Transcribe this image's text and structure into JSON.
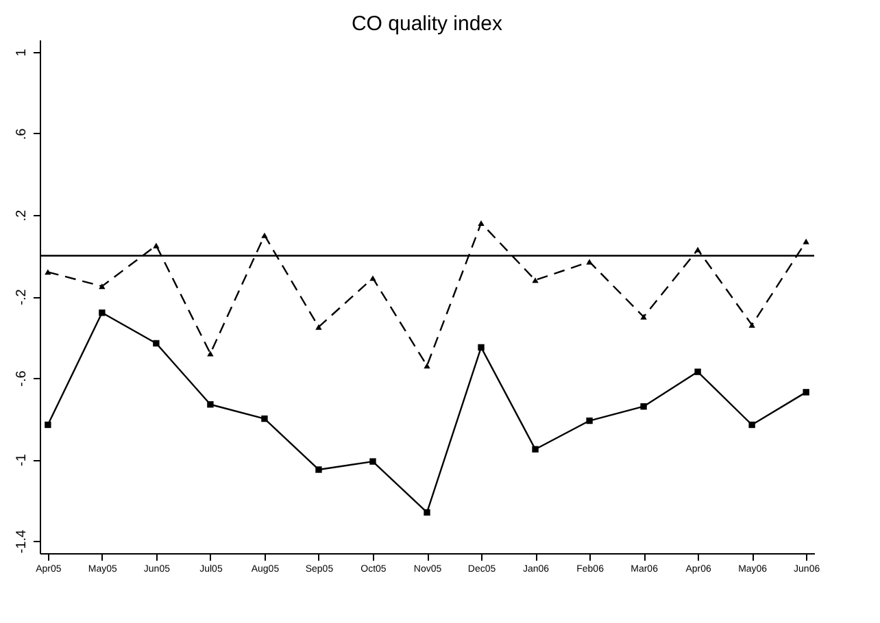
{
  "chart_data": {
    "type": "line",
    "title": "CO quality index",
    "categories": [
      "Apr05",
      "May05",
      "Jun05",
      "Jul05",
      "Aug05",
      "Sep05",
      "Oct05",
      "Nov05",
      "Dec05",
      "Jan06",
      "Feb06",
      "Mar06",
      "Apr06",
      "May06",
      "Jun06"
    ],
    "series": [
      {
        "color": "#000000",
        "marker": "triangle",
        "line_style": "dashed",
        "values": [
          -0.08,
          -0.15,
          0.05,
          -0.48,
          0.1,
          -0.35,
          -0.11,
          -0.54,
          0.16,
          -0.12,
          -0.03,
          -0.3,
          0.03,
          -0.34,
          0.07
        ]
      },
      {
        "color": "#000000",
        "marker": "square",
        "line_style": "solid",
        "values": [
          -0.83,
          -0.28,
          -0.43,
          -0.73,
          -0.8,
          -1.05,
          -1.01,
          -1.26,
          -0.45,
          -0.95,
          -0.81,
          -0.74,
          -0.57,
          -0.83,
          -0.67
        ]
      }
    ],
    "ylim": [
      -1.46,
      1.06
    ],
    "yticks": [
      {
        "value": -1.4,
        "label": "-1.4"
      },
      {
        "value": -1,
        "label": "-1"
      },
      {
        "value": -0.6,
        "label": "-.6"
      },
      {
        "value": -0.2,
        "label": "-.2"
      },
      {
        "value": 0.2,
        "label": ".2"
      },
      {
        "value": 0.6,
        "label": ".6"
      },
      {
        "value": 1,
        "label": "1"
      }
    ],
    "ref_lines": [
      {
        "axis": "y",
        "value": 0,
        "color": "#000000"
      }
    ],
    "grid": false
  }
}
